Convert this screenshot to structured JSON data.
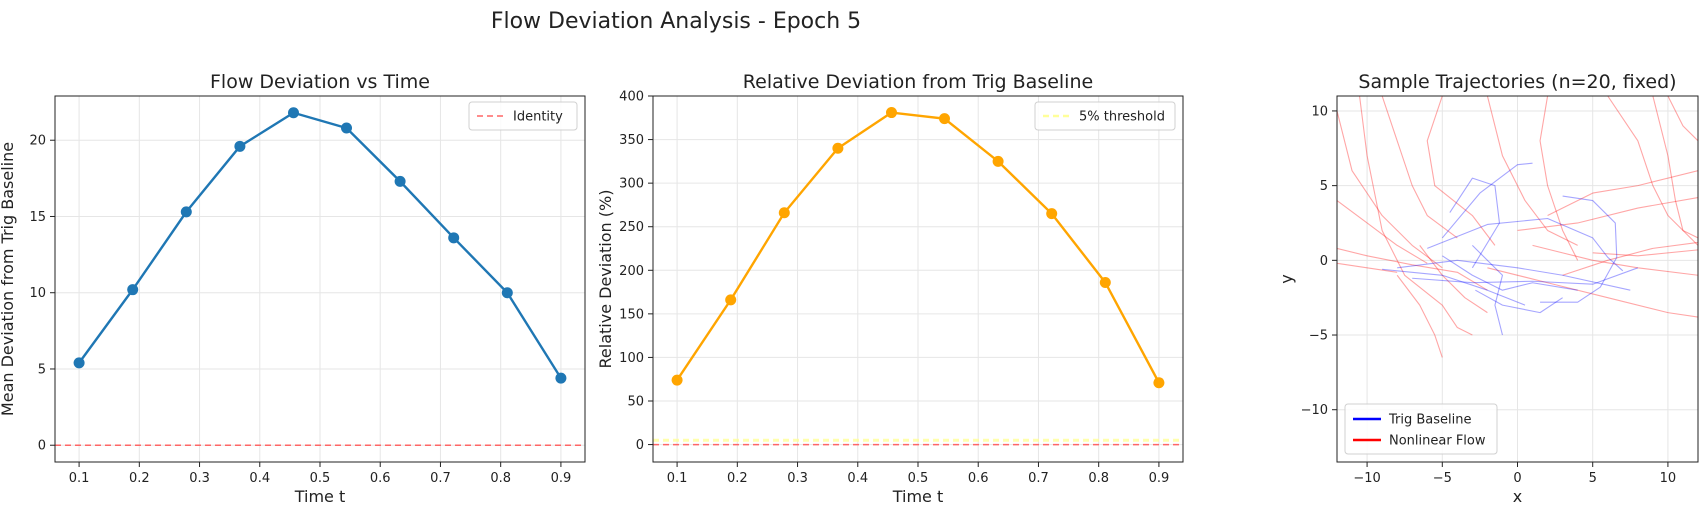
{
  "figure": {
    "title": "Flow Deviation Analysis - Epoch 5"
  },
  "chart_data": [
    {
      "type": "line",
      "title": "Flow Deviation vs Time",
      "xlabel": "Time t",
      "ylabel": "Mean Deviation from Trig Baseline",
      "xlim": [
        0.06,
        0.94
      ],
      "ylim": [
        -1.1,
        22.9
      ],
      "xticks": [
        0.1,
        0.2,
        0.3,
        0.4,
        0.5,
        0.6,
        0.7,
        0.8,
        0.9
      ],
      "yticks": [
        0,
        5,
        10,
        15,
        20
      ],
      "grid": true,
      "legend_position": "top-right",
      "series": [
        {
          "color": "#1f77b4",
          "x": [
            0.1,
            0.189,
            0.278,
            0.367,
            0.456,
            0.544,
            0.633,
            0.722,
            0.811,
            0.9
          ],
          "y": [
            5.4,
            10.2,
            15.3,
            19.6,
            21.8,
            20.8,
            17.3,
            13.6,
            10.0,
            4.4
          ]
        }
      ],
      "reference_lines": [
        {
          "name": "Identity",
          "y": 0,
          "color": "#ff6666",
          "style": "dashed"
        }
      ]
    },
    {
      "type": "line",
      "title": "Relative Deviation from Trig Baseline",
      "xlabel": "Time t",
      "ylabel": "Relative Deviation (%)",
      "xlim": [
        0.06,
        0.94
      ],
      "ylim": [
        -20,
        400
      ],
      "xticks": [
        0.1,
        0.2,
        0.3,
        0.4,
        0.5,
        0.6,
        0.7,
        0.8,
        0.9
      ],
      "yticks": [
        0,
        50,
        100,
        150,
        200,
        250,
        300,
        350,
        400
      ],
      "grid": true,
      "legend_position": "top-right",
      "series": [
        {
          "color": "#ffa500",
          "x": [
            0.1,
            0.189,
            0.278,
            0.367,
            0.456,
            0.544,
            0.633,
            0.722,
            0.811,
            0.9
          ],
          "y": [
            74,
            166,
            266,
            340,
            381,
            374,
            325,
            265,
            186,
            71
          ]
        }
      ],
      "reference_lines": [
        {
          "name": "5% threshold",
          "y": 5,
          "color": "#ffff99",
          "style": "dashed"
        },
        {
          "name": "",
          "y": 0,
          "color": "#ff6666",
          "style": "dashed"
        }
      ]
    },
    {
      "type": "line",
      "title": "Sample Trajectories (n=20, fixed)",
      "xlabel": "x",
      "ylabel": "y",
      "xlim": [
        -12,
        12
      ],
      "ylim": [
        -13.5,
        11
      ],
      "xticks": [
        -10,
        -5,
        0,
        5,
        10
      ],
      "yticks": [
        -10,
        -5,
        0,
        5,
        10
      ],
      "grid": true,
      "legend_position": "bottom-left",
      "legend": [
        {
          "name": "Trig Baseline",
          "color": "#0000ff"
        },
        {
          "name": "Nonlinear Flow",
          "color": "#ff0000"
        }
      ],
      "trajectories_blue": [
        [
          [
            -5,
            1.5
          ],
          [
            -2.5,
            4.5
          ],
          [
            0,
            6.4
          ],
          [
            1,
            6.5
          ]
        ],
        [
          [
            -4.5,
            3.2
          ],
          [
            -3,
            5.5
          ],
          [
            -1.5,
            5.0
          ],
          [
            -1.2,
            2.5
          ],
          [
            -3,
            -0.5
          ]
        ],
        [
          [
            -6,
            0.8
          ],
          [
            -2,
            2.4
          ],
          [
            2,
            2.8
          ],
          [
            5,
            1.5
          ],
          [
            6,
            0.2
          ],
          [
            7,
            -0.7
          ]
        ],
        [
          [
            -8,
            -0.5
          ],
          [
            -4,
            0
          ],
          [
            0,
            -0.5
          ],
          [
            3,
            -1.0
          ],
          [
            7.5,
            -2.0
          ]
        ],
        [
          [
            -7,
            -1.2
          ],
          [
            -3,
            -1.5
          ],
          [
            1,
            -1.4
          ],
          [
            5,
            -1.6
          ],
          [
            8,
            -0.5
          ]
        ],
        [
          [
            -5,
            0.3
          ],
          [
            -3,
            -1.0
          ],
          [
            -1,
            -2.0
          ],
          [
            1,
            -1.5
          ],
          [
            4,
            -2.0
          ]
        ],
        [
          [
            3,
            4.3
          ],
          [
            5,
            4.0
          ],
          [
            6.5,
            2.5
          ],
          [
            6.6,
            0.2
          ],
          [
            5.5,
            -1.8
          ],
          [
            4,
            -2.8
          ],
          [
            1.5,
            -2.8
          ]
        ],
        [
          [
            -3,
            1.0
          ],
          [
            -1,
            -1.0
          ],
          [
            -1.5,
            -3.0
          ],
          [
            -1,
            -5.0
          ]
        ],
        [
          [
            -2.8,
            -2.0
          ],
          [
            -1,
            -3.0
          ],
          [
            1.5,
            -3.5
          ],
          [
            3,
            -2.5
          ]
        ],
        [
          [
            -9,
            -0.6
          ],
          [
            -5,
            -1.0
          ],
          [
            -2,
            -2.0
          ],
          [
            0.5,
            -3.0
          ]
        ]
      ],
      "trajectories_red": [
        [
          [
            -12,
            10
          ],
          [
            -11,
            6
          ],
          [
            -9,
            3
          ],
          [
            -7,
            1
          ],
          [
            -5,
            -0.5
          ]
        ],
        [
          [
            -12,
            4
          ],
          [
            -10,
            2.5
          ],
          [
            -8,
            1
          ],
          [
            -6,
            -0.2
          ]
        ],
        [
          [
            -12,
            0.8
          ],
          [
            -10,
            0.3
          ],
          [
            -7,
            -0.3
          ],
          [
            -4,
            -0.8
          ],
          [
            -2,
            -2
          ]
        ],
        [
          [
            -12,
            -0.2
          ],
          [
            -10,
            -0.5
          ],
          [
            -8,
            -0.8
          ]
        ],
        [
          [
            -10.5,
            11
          ],
          [
            -10,
            7
          ],
          [
            -9,
            2
          ],
          [
            -7.5,
            -1
          ],
          [
            -5,
            -3
          ],
          [
            -4,
            -4.5
          ],
          [
            -3,
            -5
          ]
        ],
        [
          [
            -9,
            11
          ],
          [
            -8,
            8
          ],
          [
            -7,
            5
          ],
          [
            -6,
            3
          ],
          [
            -4,
            1.5
          ]
        ],
        [
          [
            -5,
            11
          ],
          [
            -6,
            8
          ],
          [
            -5.5,
            5
          ],
          [
            -3,
            3
          ],
          [
            -1.5,
            1
          ]
        ],
        [
          [
            -8,
            -1
          ],
          [
            -6.5,
            -3
          ],
          [
            -5.5,
            -5
          ],
          [
            -5,
            -6.5
          ]
        ],
        [
          [
            -6.5,
            1
          ],
          [
            -5,
            -1
          ],
          [
            -3.5,
            -2.5
          ],
          [
            -2,
            -3.5
          ]
        ],
        [
          [
            2,
            11
          ],
          [
            1.5,
            8
          ],
          [
            2,
            5
          ],
          [
            3,
            2
          ],
          [
            4,
            0
          ]
        ],
        [
          [
            1,
            1
          ],
          [
            3,
            0.5
          ],
          [
            5,
            0
          ],
          [
            8,
            -0.5
          ],
          [
            12,
            -1
          ]
        ],
        [
          [
            -2,
            -0.5
          ],
          [
            2,
            -1.5
          ],
          [
            6,
            -2.5
          ],
          [
            10,
            -3.5
          ],
          [
            12,
            -3.8
          ]
        ],
        [
          [
            0,
            2
          ],
          [
            4,
            2.5
          ],
          [
            8,
            3.5
          ],
          [
            12,
            4.2
          ]
        ],
        [
          [
            2,
            3
          ],
          [
            5,
            4.5
          ],
          [
            8,
            5
          ],
          [
            12,
            6
          ]
        ],
        [
          [
            5,
            0.5
          ],
          [
            8,
            0.3
          ],
          [
            12,
            0.7
          ]
        ],
        [
          [
            6,
            11
          ],
          [
            8,
            8
          ],
          [
            9,
            5
          ],
          [
            10,
            3
          ],
          [
            12,
            1
          ]
        ],
        [
          [
            9,
            11
          ],
          [
            10,
            7
          ],
          [
            10.5,
            4
          ],
          [
            11,
            2
          ],
          [
            12,
            1.5
          ]
        ],
        [
          [
            10,
            11
          ],
          [
            11,
            9
          ],
          [
            12,
            8
          ]
        ],
        [
          [
            3,
            -1
          ],
          [
            6,
            0
          ],
          [
            9,
            0.8
          ],
          [
            12,
            1.2
          ]
        ],
        [
          [
            -2,
            11
          ],
          [
            -1,
            7
          ],
          [
            0.5,
            4
          ],
          [
            2,
            2
          ],
          [
            4,
            1
          ]
        ]
      ]
    }
  ]
}
